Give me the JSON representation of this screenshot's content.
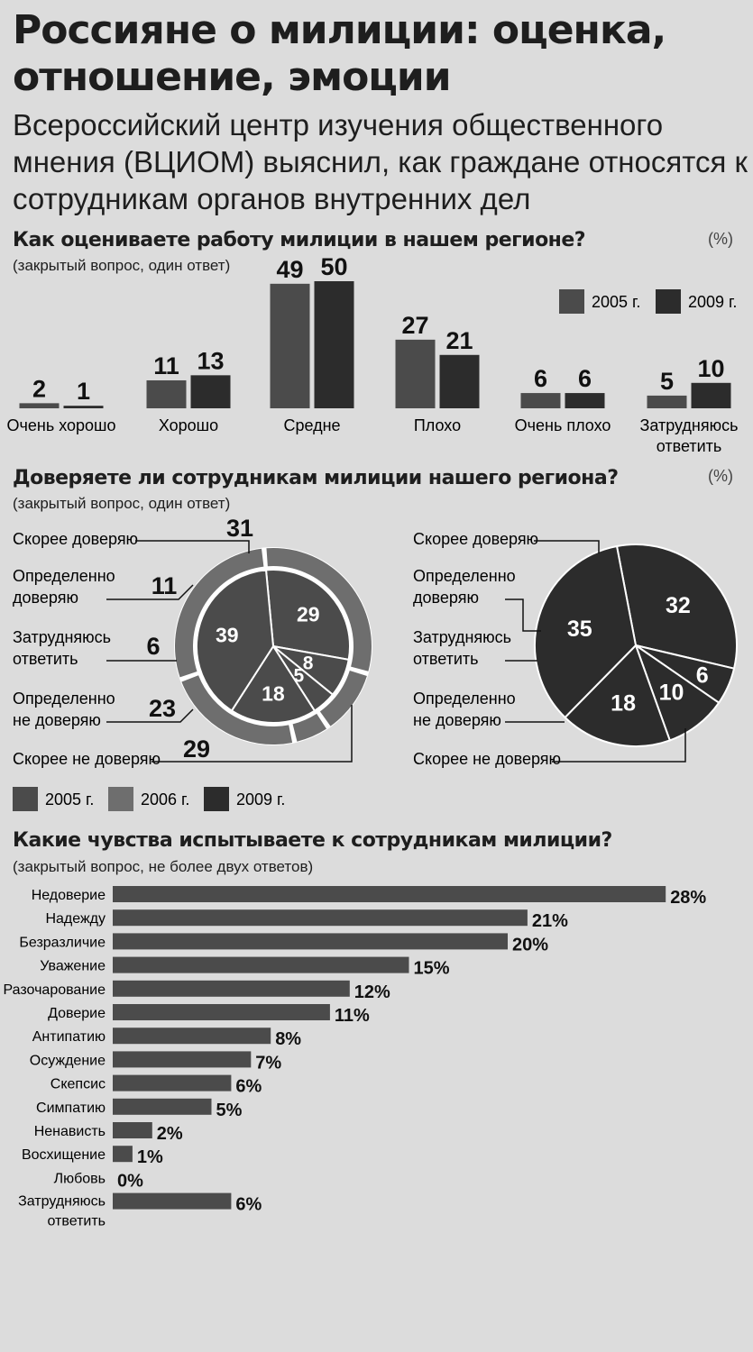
{
  "header": {
    "title": "Россияне о милиции: оценка, отношение, эмоции",
    "subtitle": "Всероссийский центр изучения общественного мнения (ВЦИОМ) выяснил, как граждане относятся к сотрудникам органов внутренних дел"
  },
  "section1": {
    "title": "Как оцениваете работу милиции в нашем регионе?",
    "note": "(закрытый вопрос, один ответ)",
    "unit": "(%)"
  },
  "section2": {
    "title": "Доверяете ли сотрудникам милиции нашего региона?",
    "note": "(закрытый вопрос, один ответ)",
    "unit": "(%)"
  },
  "section3": {
    "title": "Какие чувства испытываете к сотрудникам милиции?",
    "note": "(закрытый вопрос, не более двух ответов)"
  },
  "colors": {
    "y2005": "#4b4b4b",
    "y2006": "#6e6e6e",
    "y2009": "#2c2c2c",
    "background": "#dcdcdc"
  },
  "chart_data": [
    {
      "type": "bar",
      "categories": [
        "Очень хорошо",
        "Хорошо",
        "Средне",
        "Плохо",
        "Очень плохо",
        "Затрудняюсь ответить"
      ],
      "series": [
        {
          "name": "2005 г.",
          "values": [
            2,
            11,
            49,
            27,
            6,
            5
          ]
        },
        {
          "name": "2009 г.",
          "values": [
            1,
            13,
            50,
            21,
            6,
            10
          ]
        }
      ],
      "legend": "top-right"
    },
    {
      "type": "pie",
      "categories": [
        "Скорее доверяю",
        "Определенно доверяю",
        "Затрудняюсь ответить",
        "Определенно не доверяю",
        "Скорее не доверяю"
      ],
      "series": [
        {
          "name": "2005 г.",
          "values": [
            29,
            8,
            5,
            18,
            39
          ]
        },
        {
          "name": "2006 г.",
          "values": [
            31,
            11,
            6,
            23,
            29
          ]
        }
      ]
    },
    {
      "type": "pie",
      "categories": [
        "Скорее доверяю",
        "Определенно доверяю",
        "Затрудняюсь ответить",
        "Определенно не доверяю",
        "Скорее не доверяю"
      ],
      "series": [
        {
          "name": "2009 г.",
          "values": [
            32,
            6,
            10,
            18,
            35
          ]
        }
      ]
    },
    {
      "type": "bar",
      "orientation": "horizontal",
      "categories": [
        "Недоверие",
        "Надежду",
        "Безразличие",
        "Уважение",
        "Разочарование",
        "Доверие",
        "Антипатию",
        "Осуждение",
        "Скепсис",
        "Симпатию",
        "Ненависть",
        "Восхищение",
        "Любовь",
        "Затрудняюсь ответить"
      ],
      "values": [
        28,
        21,
        20,
        15,
        12,
        11,
        8,
        7,
        6,
        5,
        2,
        1,
        0,
        6
      ],
      "value_suffix": "%"
    }
  ]
}
